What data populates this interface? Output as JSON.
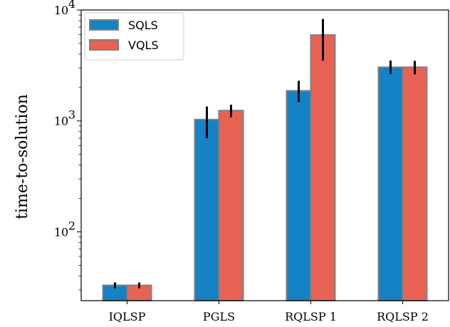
{
  "chart_data": {
    "type": "bar",
    "title": "",
    "xlabel": "",
    "ylabel": "time-to-solution",
    "yscale": "log",
    "ylim": [
      24,
      10000
    ],
    "yticks": [
      {
        "value": 100,
        "base": "10",
        "exp": "2"
      },
      {
        "value": 1000,
        "base": "10",
        "exp": "3"
      },
      {
        "value": 10000,
        "base": "10",
        "exp": "4"
      }
    ],
    "categories": [
      "IQLSP",
      "PGLS",
      "RQLSP 1",
      "RQLSP 2"
    ],
    "series": [
      {
        "name": "SQLS",
        "color": "#1482c4",
        "values": [
          33,
          1030,
          1870,
          3050
        ],
        "error_low": [
          31,
          700,
          1480,
          2650
        ],
        "error_high": [
          35,
          1350,
          2300,
          3500
        ]
      },
      {
        "name": "VQLS",
        "color": "#e86253",
        "values": [
          33,
          1240,
          5950,
          3050
        ],
        "error_low": [
          31,
          1080,
          3500,
          2630
        ],
        "error_high": [
          35,
          1400,
          8300,
          3480
        ]
      }
    ],
    "legend_position": "top-left",
    "edge_color": "#808080",
    "grid": false
  }
}
